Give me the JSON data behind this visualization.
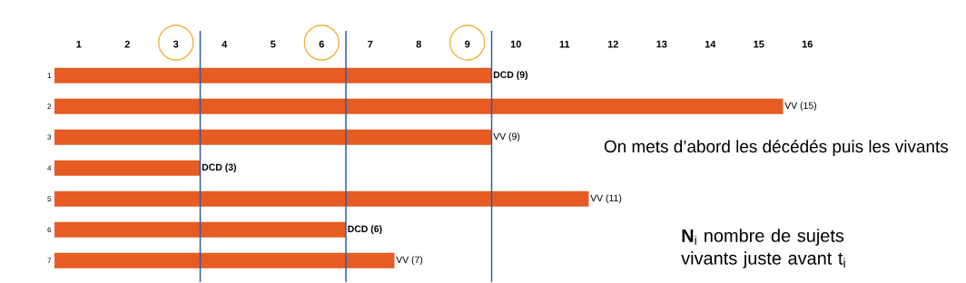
{
  "chart_data": {
    "type": "bar",
    "orientation": "horizontal",
    "categories": [
      "1",
      "2",
      "3",
      "4",
      "5",
      "6",
      "7"
    ],
    "values": [
      9,
      15,
      9,
      3,
      11,
      6,
      7
    ],
    "color": "#e65c22",
    "value_labels": [
      "**DCD (9)**",
      "VV (15)",
      "VV (9)",
      "**DCD (3)**",
      "VV (11)",
      "**DCD (6)**",
      "VV (7)"
    ],
    "xlim": [
      0,
      15.5
    ],
    "xticks": [
      {
        "value": 0.5,
        "label": "1"
      },
      {
        "value": 1.5,
        "label": "2"
      },
      {
        "value": 2.5,
        "label": "3"
      },
      {
        "value": 3.5,
        "label": "4"
      },
      {
        "value": 4.5,
        "label": "5"
      },
      {
        "value": 5.5,
        "label": "6"
      },
      {
        "value": 6.5,
        "label": "7"
      },
      {
        "value": 7.5,
        "label": "8"
      },
      {
        "value": 8.5,
        "label": "9"
      },
      {
        "value": 9.5,
        "label": "10"
      },
      {
        "value": 10.5,
        "label": "11"
      },
      {
        "value": 11.5,
        "label": "12"
      },
      {
        "value": 12.5,
        "label": "13"
      },
      {
        "value": 13.5,
        "label": "14"
      },
      {
        "value": 14.5,
        "label": "15"
      },
      {
        "value": 15.5,
        "label": "16"
      }
    ],
    "ref_lines": [
      {
        "axis": "x",
        "value": 3,
        "color": "#2a5cb0"
      },
      {
        "axis": "x",
        "value": 6,
        "color": "#2a5cb0"
      },
      {
        "axis": "x",
        "value": 9,
        "color": "#2a5cb0"
      }
    ],
    "annotations": [
      "On mets d’abord les décédés puis les vivants",
      "**N**$_{i}$ nombre de sujets vivants juste avant t$_{i}$"
    ],
    "grid": false
  }
}
